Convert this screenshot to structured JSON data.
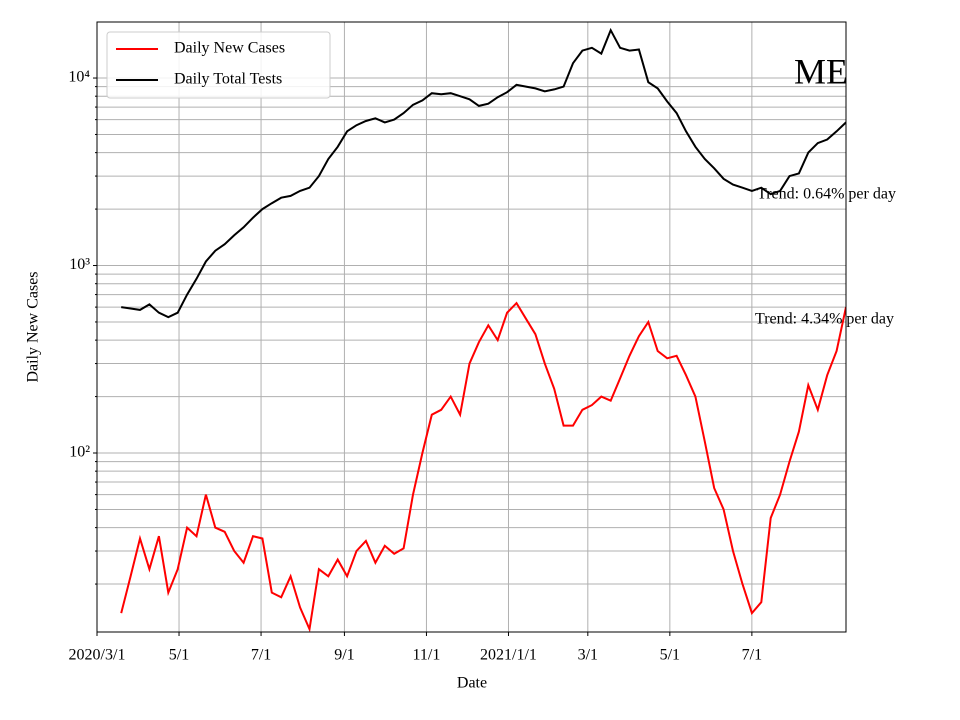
{
  "chart_data": {
    "type": "line",
    "title": "ME",
    "xlabel": "Date",
    "ylabel": "Daily New Cases",
    "log_scale": true,
    "grid": true,
    "legend": "upper left",
    "annotations": [
      "Trend: 0.64% per day",
      "Trend: 4.34% per day"
    ],
    "xlim": [
      "2020-03-01",
      "2021-09-09"
    ],
    "xticks": [
      {
        "value": "2020-03-01",
        "label": "2020/3/1"
      },
      {
        "value": "2020-05-01",
        "label": "5/1"
      },
      {
        "value": "2020-07-01",
        "label": "7/1"
      },
      {
        "value": "2020-09-01",
        "label": "9/1"
      },
      {
        "value": "2020-11-01",
        "label": "11/1"
      },
      {
        "value": "2021-01-01",
        "label": "2021/1/1"
      },
      {
        "value": "2021-03-01",
        "label": "3/1"
      },
      {
        "value": "2021-05-01",
        "label": "5/1"
      },
      {
        "value": "2021-07-01",
        "label": "7/1"
      }
    ],
    "ylim": [
      11.1,
      19900
    ],
    "yticks": [
      {
        "value": 100,
        "label": "10²"
      },
      {
        "value": 1000,
        "label": "10³"
      },
      {
        "value": 10000,
        "label": "10⁴"
      }
    ],
    "yminorticks": [
      20,
      30,
      40,
      50,
      60,
      70,
      80,
      90,
      200,
      300,
      400,
      500,
      600,
      700,
      800,
      900,
      2000,
      3000,
      4000,
      5000,
      6000,
      7000,
      8000,
      9000
    ],
    "x": [
      "2020-03-19",
      "2020-03-26",
      "2020-04-02",
      "2020-04-09",
      "2020-04-16",
      "2020-04-23",
      "2020-04-30",
      "2020-05-07",
      "2020-05-14",
      "2020-05-21",
      "2020-05-28",
      "2020-06-04",
      "2020-06-11",
      "2020-06-18",
      "2020-06-25",
      "2020-07-02",
      "2020-07-09",
      "2020-07-16",
      "2020-07-23",
      "2020-07-30",
      "2020-08-06",
      "2020-08-13",
      "2020-08-20",
      "2020-08-27",
      "2020-09-03",
      "2020-09-10",
      "2020-09-17",
      "2020-09-24",
      "2020-10-01",
      "2020-10-08",
      "2020-10-15",
      "2020-10-22",
      "2020-10-29",
      "2020-11-05",
      "2020-11-12",
      "2020-11-19",
      "2020-11-26",
      "2020-12-03",
      "2020-12-10",
      "2020-12-17",
      "2020-12-24",
      "2020-12-31",
      "2021-01-07",
      "2021-01-14",
      "2021-01-21",
      "2021-01-28",
      "2021-02-04",
      "2021-02-11",
      "2021-02-18",
      "2021-02-25",
      "2021-03-04",
      "2021-03-11",
      "2021-03-18",
      "2021-03-25",
      "2021-04-01",
      "2021-04-08",
      "2021-04-15",
      "2021-04-22",
      "2021-04-29",
      "2021-05-06",
      "2021-05-13",
      "2021-05-20",
      "2021-05-27",
      "2021-06-03",
      "2021-06-10",
      "2021-06-17",
      "2021-06-24",
      "2021-07-01",
      "2021-07-08",
      "2021-07-15",
      "2021-07-22",
      "2021-07-29",
      "2021-08-05",
      "2021-08-12",
      "2021-08-19",
      "2021-08-26",
      "2021-09-02",
      "2021-09-09"
    ],
    "series": [
      {
        "name": "Daily New Cases",
        "color": "#ff0000",
        "values": [
          14,
          22,
          35,
          24,
          36,
          18,
          24,
          40,
          36,
          60,
          40,
          38,
          30,
          26,
          36,
          35,
          18,
          17,
          22,
          15,
          11.5,
          24,
          22,
          27,
          22,
          30,
          34,
          26,
          32,
          29,
          31,
          60,
          100,
          160,
          170,
          200,
          160,
          300,
          390,
          480,
          400,
          560,
          630,
          520,
          430,
          300,
          220,
          140,
          140,
          170,
          180,
          200,
          190,
          250,
          330,
          420,
          500,
          350,
          320,
          330,
          260,
          200,
          115,
          65,
          50,
          30,
          20,
          14,
          16,
          45,
          60,
          90,
          130,
          230,
          170,
          260,
          350,
          600
        ]
      },
      {
        "name": "Daily Total Tests",
        "color": "#000000",
        "values": [
          600,
          590,
          580,
          620,
          560,
          530,
          560,
          700,
          850,
          1050,
          1200,
          1300,
          1450,
          1600,
          1800,
          2000,
          2150,
          2300,
          2350,
          2500,
          2600,
          3000,
          3700,
          4300,
          5200,
          5600,
          5900,
          6100,
          5800,
          6000,
          6500,
          7200,
          7600,
          8300,
          8200,
          8300,
          8000,
          7700,
          7100,
          7300,
          7900,
          8400,
          9200,
          9000,
          8800,
          8500,
          8700,
          9000,
          12000,
          14000,
          14500,
          13500,
          18000,
          14500,
          14000,
          14200,
          9500,
          8800,
          7500,
          6500,
          5200,
          4300,
          3700,
          3300,
          2900,
          2700,
          2600,
          2500,
          2600,
          2400,
          2500,
          3000,
          3100,
          4000,
          4500,
          4700,
          5200,
          5800
        ]
      }
    ]
  }
}
